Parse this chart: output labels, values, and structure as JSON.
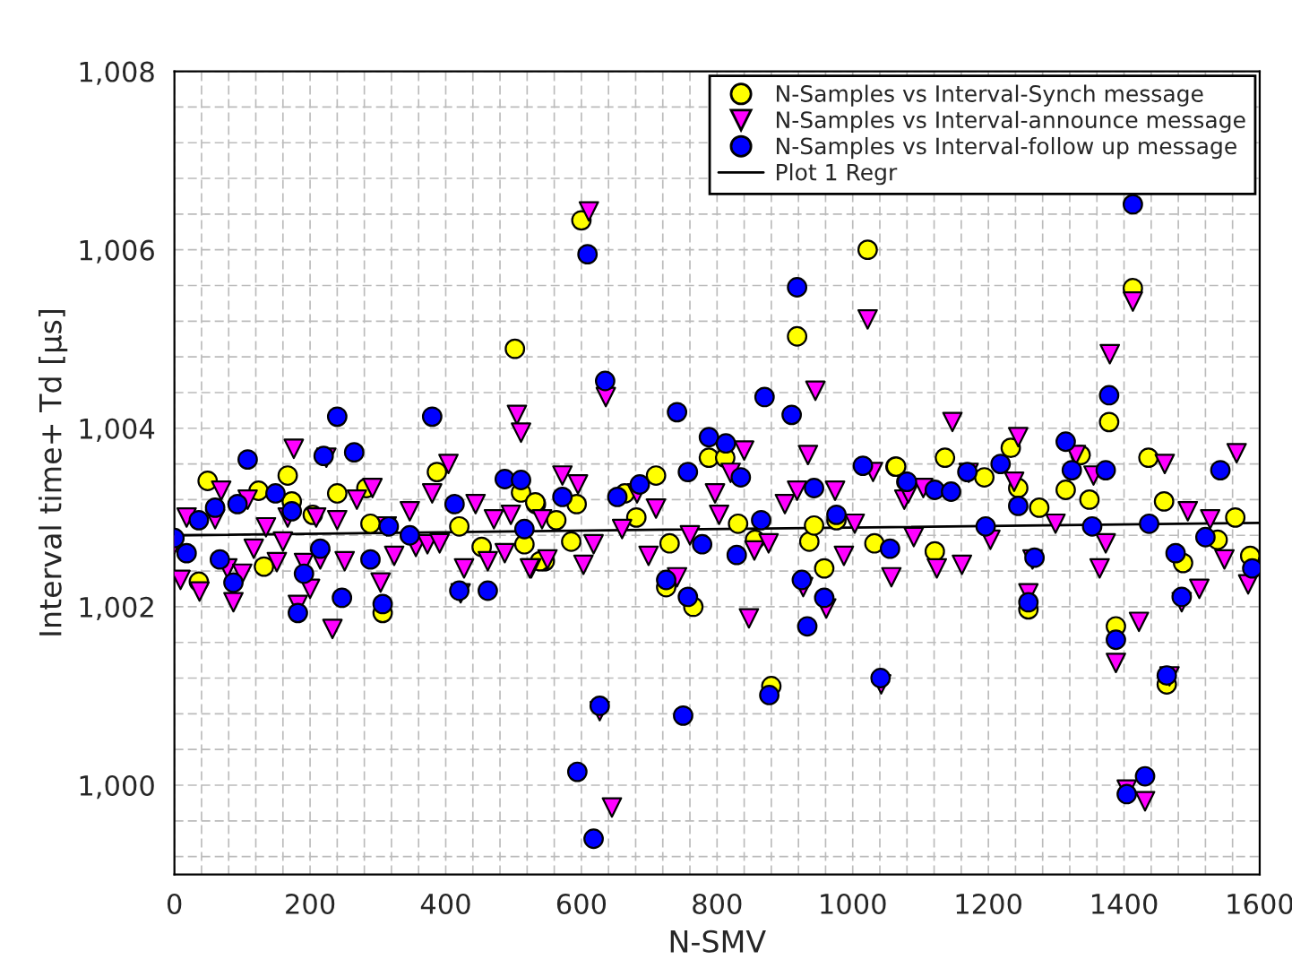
{
  "chart_data": {
    "type": "scatter",
    "xlabel": "N-SMV",
    "ylabel": "Interval time+ Td [µs]",
    "xlim": [
      0,
      1600
    ],
    "xticks": [
      0,
      200,
      400,
      600,
      800,
      1000,
      1200,
      1400,
      1600
    ],
    "ylim": [
      999,
      1008
    ],
    "yticks": [
      {
        "value": 1000,
        "label": "1,000"
      },
      {
        "value": 1002,
        "label": "1,002"
      },
      {
        "value": 1004,
        "label": "1,004"
      },
      {
        "value": 1006,
        "label": "1,006"
      },
      {
        "value": 1008,
        "label": "1,008"
      }
    ],
    "grid": true,
    "legend": "top right",
    "series": [
      {
        "name": "N-Samples vs Interval-Synch message",
        "marker": "circle",
        "color": "#ffff00",
        "x": [
          49,
          124,
          167,
          240,
          132,
          36,
          283,
          307,
          387,
          502,
          511,
          533,
          546,
          173,
          420,
          453,
          516,
          289,
          204,
          600,
          532,
          563,
          593,
          585,
          539,
          664,
          681,
          710,
          730,
          725,
          765,
          788,
          812,
          831,
          856,
          880,
          918,
          936,
          943,
          958,
          976,
          1022,
          1032,
          1063,
          1064,
          1136,
          1121,
          1194,
          1233,
          1244,
          1259,
          1275,
          1314,
          1336,
          1349,
          1378,
          1388,
          1413,
          1436,
          1459,
          1463,
          1487,
          1564,
          1586,
          1538
        ],
        "values": [
          1003.41,
          1003.3,
          1003.47,
          1003.27,
          1002.45,
          1002.28,
          1003.33,
          1001.93,
          1003.51,
          1004.89,
          1003.28,
          1003.15,
          1002.51,
          1003.18,
          1002.9,
          1002.67,
          1002.7,
          1002.93,
          1003.03,
          1006.33,
          1003.17,
          1002.97,
          1003.15,
          1002.73,
          1002.51,
          1003.27,
          1003.0,
          1003.47,
          1002.71,
          1002.22,
          1002.0,
          1003.67,
          1003.67,
          1002.93,
          1002.75,
          1001.11,
          1005.03,
          1002.73,
          1002.91,
          1002.43,
          1002.97,
          1006.0,
          1002.71,
          1003.57,
          1003.57,
          1003.67,
          1002.62,
          1003.45,
          1003.78,
          1003.33,
          1001.97,
          1003.11,
          1003.31,
          1003.7,
          1003.2,
          1004.07,
          1001.78,
          1005.57,
          1003.67,
          1003.18,
          1001.13,
          1002.49,
          1003.0,
          1002.57,
          1002.75
        ]
      },
      {
        "name": "N-Samples vs Interval-announce message",
        "marker": "triangle",
        "color": "#ff00ff",
        "x": [
          18,
          9,
          0,
          37,
          69,
          60,
          87,
          78,
          100,
          108,
          117,
          135,
          151,
          160,
          176,
          167,
          182,
          191,
          200,
          209,
          215,
          224,
          233,
          240,
          251,
          269,
          292,
          304,
          313,
          324,
          347,
          356,
          373,
          391,
          380,
          404,
          427,
          422,
          444,
          462,
          471,
          487,
          496,
          505,
          511,
          526,
          542,
          611,
          636,
          627,
          645,
          572,
          595,
          618,
          603,
          550,
          524,
          660,
          682,
          699,
          710,
          741,
          760,
          797,
          820,
          840,
          847,
          855,
          876,
          900,
          918,
          934,
          945,
          927,
          961,
          974,
          987,
          1003,
          1022,
          1030,
          1042,
          1057,
          1076,
          803,
          1147,
          1082,
          1104,
          1090,
          1124,
          1161,
          1171,
          1203,
          1244,
          1238,
          1259,
          1265,
          1299,
          1329,
          1355,
          1379,
          1373,
          1364,
          1388,
          1413,
          1422,
          1404,
          1431,
          1460,
          1467,
          1494,
          1485,
          1511,
          1527,
          1548,
          1566,
          1583
        ],
        "values": [
          1003.0,
          1002.3,
          1002.7,
          1002.17,
          1003.3,
          1002.98,
          1002.05,
          1002.43,
          1002.37,
          1003.2,
          1002.65,
          1002.89,
          1002.5,
          1002.73,
          1003.77,
          1003.0,
          1002.02,
          1002.49,
          1002.2,
          1003.0,
          1002.53,
          1003.67,
          1001.75,
          1002.97,
          1002.51,
          1003.2,
          1003.33,
          1002.27,
          1002.9,
          1002.57,
          1003.07,
          1002.67,
          1002.7,
          1002.71,
          1003.27,
          1003.6,
          1002.43,
          1002.15,
          1003.15,
          1002.51,
          1002.98,
          1002.6,
          1003.03,
          1004.15,
          1003.95,
          1002.43,
          1002.98,
          1006.43,
          1004.35,
          1000.83,
          999.75,
          1003.47,
          1003.37,
          1002.7,
          1002.47,
          1002.53,
          1002.43,
          1002.87,
          1003.27,
          1002.57,
          1003.1,
          1002.33,
          1002.8,
          1003.27,
          1003.5,
          1003.75,
          1001.87,
          1002.63,
          1002.71,
          1003.15,
          1003.3,
          1003.7,
          1004.42,
          1002.22,
          1001.98,
          1003.3,
          1002.57,
          1002.93,
          1005.22,
          1003.51,
          1001.13,
          1002.33,
          1003.2,
          1003.03,
          1004.07,
          1003.27,
          1003.33,
          1002.78,
          1002.43,
          1002.47,
          1003.5,
          1002.75,
          1003.9,
          1003.4,
          1002.15,
          1002.53,
          1002.93,
          1003.7,
          1003.47,
          1004.83,
          1002.71,
          1002.43,
          1001.37,
          1005.42,
          1001.83,
          999.95,
          999.82,
          1003.6,
          1001.22,
          1003.07,
          1002.05,
          1002.2,
          1002.98,
          1002.53,
          1003.72,
          1002.25
        ]
      },
      {
        "name": "N-Samples vs Interval-follow up message",
        "marker": "circle",
        "color": "#0000ff",
        "x": [
          0,
          18,
          36,
          60,
          67,
          87,
          93,
          108,
          149,
          173,
          182,
          191,
          215,
          220,
          240,
          247,
          265,
          289,
          307,
          316,
          347,
          380,
          413,
          420,
          462,
          487,
          511,
          516,
          609,
          635,
          627,
          594,
          618,
          572,
          653,
          686,
          741,
          757,
          725,
          757,
          750,
          788,
          813,
          829,
          835,
          870,
          877,
          910,
          918,
          943,
          925,
          933,
          958,
          976,
          1015,
          1041,
          1055,
          1079,
          778,
          865,
          1080,
          1121,
          1145,
          1169,
          1218,
          1244,
          1259,
          1268,
          1314,
          1323,
          1373,
          1378,
          1388,
          1413,
          1431,
          1404,
          1437,
          1353,
          1463,
          1476,
          1485,
          1520,
          1542,
          1589,
          1196
        ],
        "values": [
          1002.77,
          1002.6,
          1002.97,
          1003.11,
          1002.53,
          1002.27,
          1003.15,
          1003.65,
          1003.27,
          1003.07,
          1001.93,
          1002.37,
          1002.65,
          1003.69,
          1004.13,
          1002.1,
          1003.73,
          1002.53,
          1002.03,
          1002.9,
          1002.8,
          1004.13,
          1003.15,
          1002.18,
          1002.18,
          1003.43,
          1003.42,
          1002.87,
          1005.95,
          1004.53,
          1000.89,
          1000.15,
          999.4,
          1003.23,
          1003.23,
          1003.37,
          1004.18,
          1003.51,
          1002.3,
          1002.11,
          1000.78,
          1003.9,
          1003.83,
          1002.58,
          1003.45,
          1004.35,
          1001.01,
          1004.15,
          1005.58,
          1003.33,
          1002.3,
          1001.78,
          1002.1,
          1003.03,
          1003.58,
          1001.2,
          1002.65,
          1003.4,
          1002.7,
          1002.97,
          1003.4,
          1003.31,
          1003.29,
          1003.51,
          1003.6,
          1003.13,
          1002.05,
          1002.55,
          1003.85,
          1003.53,
          1003.53,
          1004.37,
          1001.63,
          1006.51,
          1000.1,
          999.9,
          1002.93,
          1002.9,
          1001.23,
          1002.6,
          1002.11,
          1002.78,
          1003.53,
          1002.43,
          1002.9
        ]
      },
      {
        "name": "Plot 1 Regr",
        "type": "line",
        "color": "#000000",
        "x": [
          0,
          1600
        ],
        "values": [
          1002.8,
          1002.94
        ]
      }
    ]
  }
}
